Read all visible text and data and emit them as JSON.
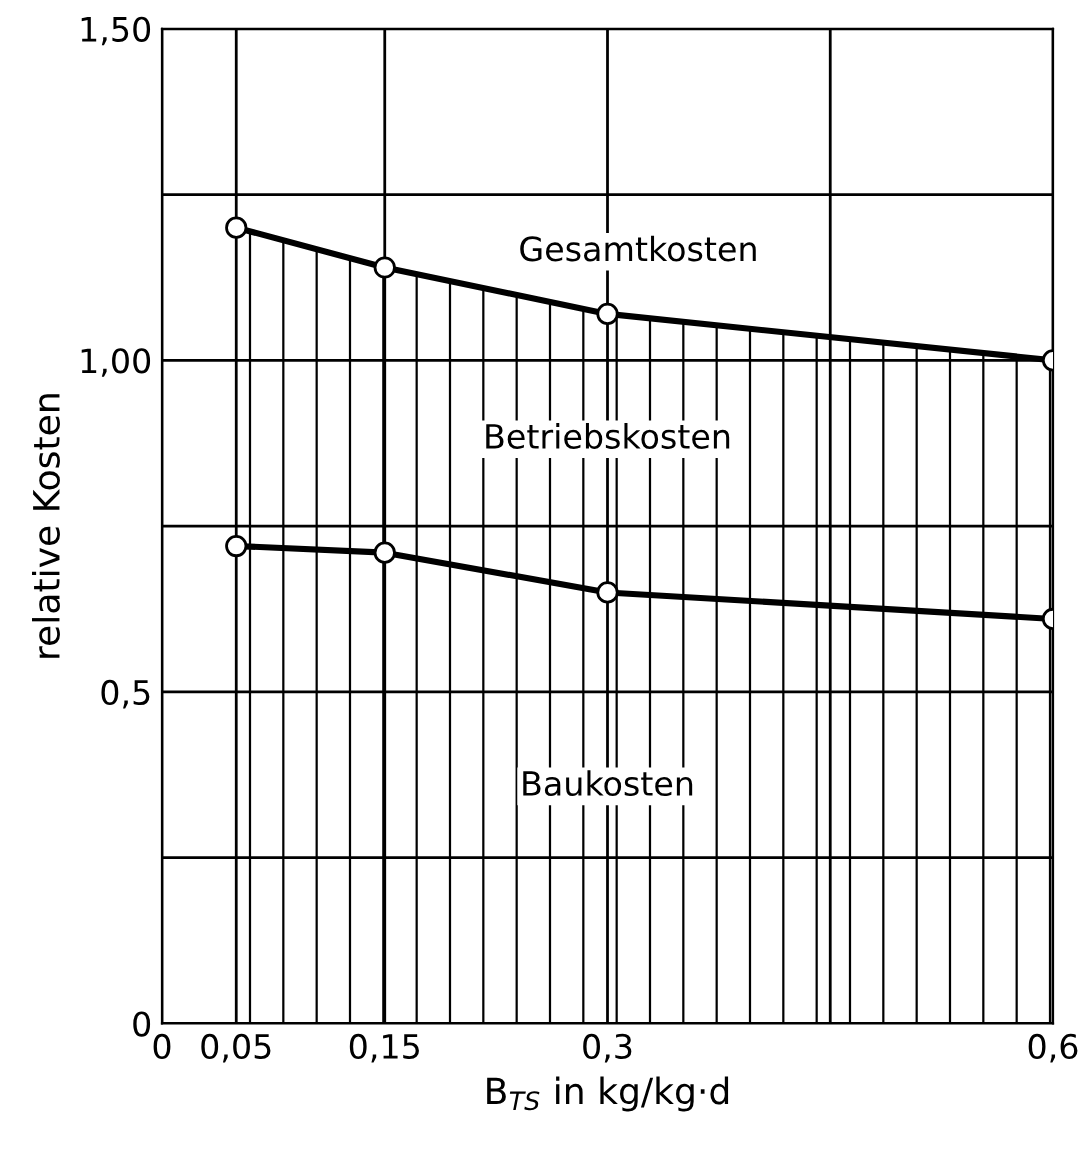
{
  "chart_data": {
    "type": "area",
    "xlabel": "B$_{TS}$ in kg/kg·d",
    "ylabel": "relative Kosten",
    "stacked": true,
    "x": [
      0.05,
      0.15,
      0.3,
      0.6
    ],
    "series": [
      {
        "name": "Baukosten",
        "color": "#000000",
        "values": [
          0.72,
          0.71,
          0.65,
          0.61
        ]
      },
      {
        "name": "Betriebskosten",
        "color": "#000000",
        "values": [
          0.48,
          0.43,
          0.42,
          0.39
        ]
      }
    ],
    "annotations": [
      "Gesamtkosten"
    ],
    "xlim": [
      0,
      0.6
    ],
    "ylim": [
      0,
      1.5
    ],
    "xticks": [
      {
        "value": 0,
        "label": "0"
      },
      {
        "value": 0.05,
        "label": "0,05"
      },
      {
        "value": 0.15,
        "label": "0,15"
      },
      {
        "value": 0.3,
        "label": "0,3"
      },
      {
        "value": 0.45,
        "label": null
      },
      {
        "value": 0.6,
        "label": "0,6"
      }
    ],
    "yticks": [
      {
        "value": 0,
        "label": "0"
      },
      {
        "value": 0.25,
        "label": null
      },
      {
        "value": 0.5,
        "label": "0,5"
      },
      {
        "value": 0.75,
        "label": null
      },
      {
        "value": 1.0,
        "label": "1,00"
      },
      {
        "value": 1.25,
        "label": null
      },
      {
        "value": 1.5,
        "label": "1,50"
      }
    ],
    "grid": true,
    "marker": "circle",
    "line_style": "solid",
    "legend": false
  }
}
